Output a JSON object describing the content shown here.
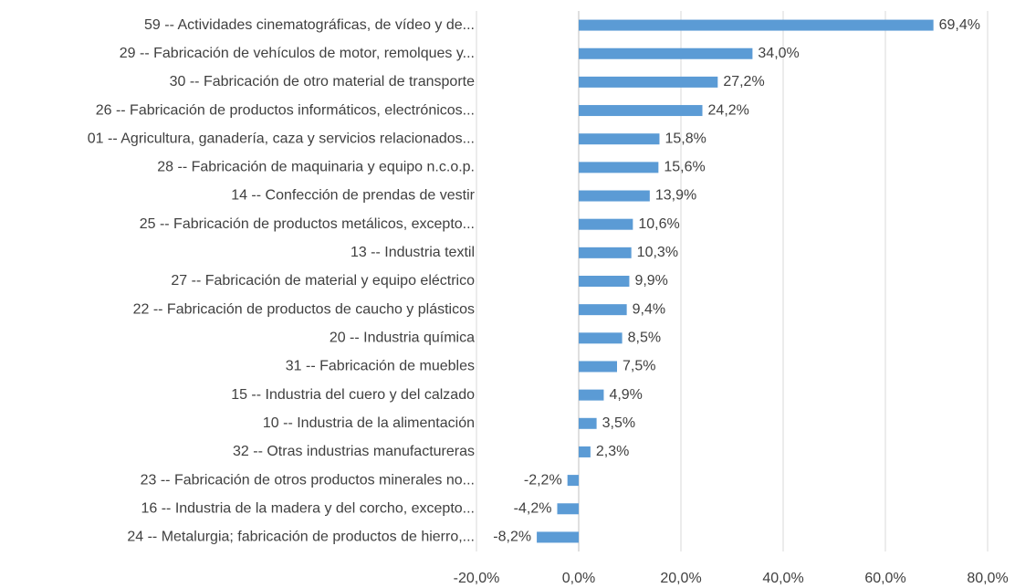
{
  "chart_data": {
    "type": "barh",
    "categories": [
      "59 -- Actividades cinematográficas, de vídeo y de...",
      "29 -- Fabricación de vehículos de motor, remolques y...",
      "30 -- Fabricación de otro material de transporte",
      "26 -- Fabricación de productos informáticos, electrónicos...",
      "01 -- Agricultura, ganadería, caza y servicios relacionados...",
      "28 -- Fabricación de maquinaria y equipo n.c.o.p.",
      "14 -- Confección de prendas de vestir",
      "25 -- Fabricación de productos metálicos, excepto...",
      "13 -- Industria textil",
      "27 -- Fabricación de material y equipo eléctrico",
      "22 -- Fabricación de productos de caucho y plásticos",
      "20 -- Industria química",
      "31 -- Fabricación de muebles",
      "15 -- Industria del cuero y del calzado",
      "10 -- Industria de la alimentación",
      "32 -- Otras industrias manufactureras",
      "23 -- Fabricación de otros productos minerales no...",
      "16 -- Industria de la madera y del corcho, excepto...",
      "24 -- Metalurgia; fabricación de productos de hierro,..."
    ],
    "values": [
      69.4,
      34.0,
      27.2,
      24.2,
      15.8,
      15.6,
      13.9,
      10.6,
      10.3,
      9.9,
      9.4,
      8.5,
      7.5,
      4.9,
      3.5,
      2.3,
      -2.2,
      -4.2,
      -8.2
    ],
    "value_labels": [
      "69,4%",
      "34,0%",
      "27,2%",
      "24,2%",
      "15,8%",
      "15,6%",
      "13,9%",
      "10,6%",
      "10,3%",
      "9,9%",
      "9,4%",
      "8,5%",
      "7,5%",
      "4,9%",
      "3,5%",
      "2,3%",
      "-2,2%",
      "-4,2%",
      "-8,2%"
    ],
    "color": "#5b9bd5",
    "xlim": [
      -20,
      80
    ],
    "xticks": [
      {
        "value": -20,
        "label": "-20,0%"
      },
      {
        "value": 0,
        "label": "0,0%"
      },
      {
        "value": 20,
        "label": "20,0%"
      },
      {
        "value": 40,
        "label": "40,0%"
      },
      {
        "value": 60,
        "label": "60,0%"
      },
      {
        "value": 80,
        "label": "80,0%"
      }
    ],
    "grid": true
  }
}
